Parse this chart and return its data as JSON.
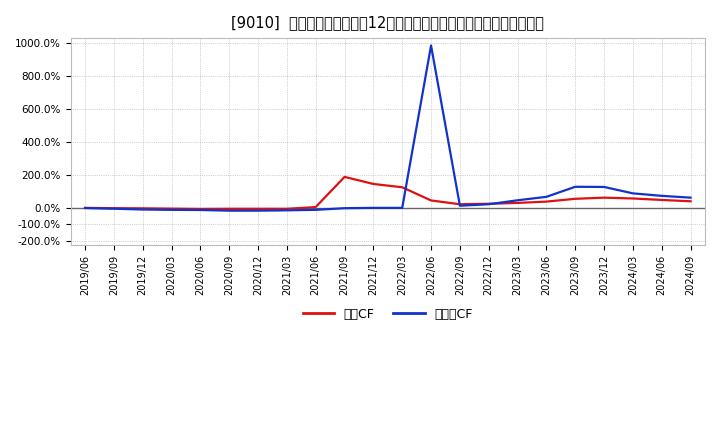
{
  "title": "[9010]  キャッシュフローの12か月移動合計の対前年同期増減率の推移",
  "title_fontsize": 10.5,
  "background_color": "#ffffff",
  "plot_bg_color": "#ffffff",
  "grid_color": "#aaaaaa",
  "zero_line_color": "#666666",
  "legend_labels": [
    "営業CF",
    "フリーCF"
  ],
  "line_colors": [
    "#dd1111",
    "#1133cc"
  ],
  "line_width": 1.6,
  "x_labels": [
    "2019/06",
    "2019/09",
    "2019/12",
    "2020/03",
    "2020/06",
    "2020/09",
    "2020/12",
    "2021/03",
    "2021/06",
    "2021/09",
    "2021/12",
    "2022/03",
    "2022/06",
    "2022/09",
    "2022/12",
    "2023/03",
    "2023/06",
    "2023/09",
    "2023/12",
    "2024/03",
    "2024/06",
    "2024/09"
  ],
  "operating_cf": [
    0.0,
    -0.02,
    -0.03,
    -0.05,
    -0.07,
    -0.06,
    -0.06,
    -0.06,
    0.05,
    1.88,
    1.45,
    1.25,
    0.45,
    0.22,
    0.25,
    0.3,
    0.38,
    0.55,
    0.62,
    0.57,
    0.48,
    0.4
  ],
  "free_cf": [
    -0.01,
    -0.05,
    -0.1,
    -0.12,
    -0.13,
    -0.17,
    -0.17,
    -0.15,
    -0.12,
    -0.02,
    0.0,
    0.0,
    9.85,
    0.13,
    0.22,
    0.46,
    0.67,
    1.28,
    1.27,
    0.88,
    0.73,
    0.62
  ],
  "ytick_vals": [
    -2.0,
    -1.0,
    0.0,
    2.0,
    4.0,
    6.0,
    8.0,
    10.0
  ],
  "ytick_labels": [
    "-200.0%",
    "-100.0%",
    "0.0%",
    "200.0%",
    "400.0%",
    "600.0%",
    "800.0%",
    "1000.0%"
  ],
  "ylim_min": -2.25,
  "ylim_max": 10.3
}
